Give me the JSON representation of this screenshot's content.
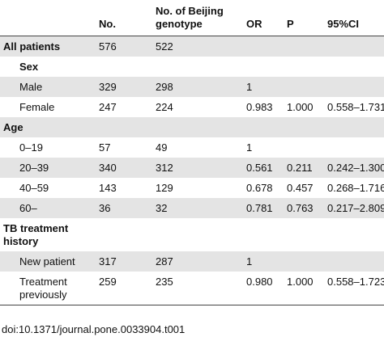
{
  "table": {
    "header": {
      "no": "No.",
      "beijing": "No. of Beijing genotype",
      "or": "OR",
      "p": "P",
      "ci": "95%CI"
    },
    "sections": [
      {
        "label": "All patients",
        "no": "576",
        "beijing": "522",
        "subsections": [
          {
            "label": "Sex",
            "items": [
              {
                "label": "Male",
                "no": "329",
                "beijing": "298",
                "or": "1"
              },
              {
                "label": "Female",
                "no": "247",
                "beijing": "224",
                "or": "0.983",
                "p": "1.000",
                "ci": "0.558–1.731"
              }
            ]
          }
        ]
      },
      {
        "label": "Age",
        "items": [
          {
            "label": "0–19",
            "no": "57",
            "beijing": "49",
            "or": "1"
          },
          {
            "label": "20–39",
            "no": "340",
            "beijing": "312",
            "or": "0.561",
            "p": "0.211",
            "ci": "0.242–1.300"
          },
          {
            "label": "40–59",
            "no": "143",
            "beijing": "129",
            "or": "0.678",
            "p": "0.457",
            "ci": "0.268–1.716"
          },
          {
            "label": "60–",
            "no": "36",
            "beijing": "32",
            "or": "0.781",
            "p": "0.763",
            "ci": "0.217–2.809"
          }
        ]
      },
      {
        "label": "TB treatment history",
        "items": [
          {
            "label": "New patient",
            "no": "317",
            "beijing": "287",
            "or": "1"
          },
          {
            "label": "Treatment previously",
            "no": "259",
            "beijing": "235",
            "or": "0.980",
            "p": "1.000",
            "ci": "0.558–1.723"
          }
        ]
      }
    ]
  },
  "footer": {
    "doi": "doi:10.1371/journal.pone.0033904.t001"
  }
}
